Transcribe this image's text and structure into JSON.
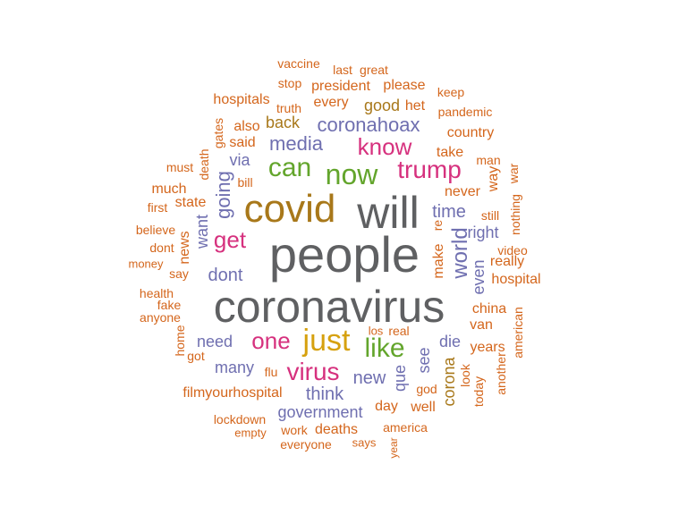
{
  "palette": {
    "gray": "#5f6062",
    "orange": "#d4661c",
    "olive": "#a8781a",
    "purple": "#6f6fb0",
    "pink": "#d6317e",
    "green": "#63a52c",
    "gold": "#d6a10f"
  },
  "words": [
    {
      "text": "people",
      "color": "gray"
    },
    {
      "text": "coronavirus",
      "color": "gray"
    },
    {
      "text": "will",
      "color": "gray"
    },
    {
      "text": "covid",
      "color": "olive"
    },
    {
      "text": "now",
      "color": "green"
    },
    {
      "text": "can",
      "color": "green"
    },
    {
      "text": "trump",
      "color": "pink"
    },
    {
      "text": "just",
      "color": "gold"
    },
    {
      "text": "like",
      "color": "green"
    },
    {
      "text": "one",
      "color": "pink"
    },
    {
      "text": "know",
      "color": "pink"
    },
    {
      "text": "virus",
      "color": "pink"
    },
    {
      "text": "get",
      "color": "pink"
    },
    {
      "text": "media",
      "color": "purple"
    },
    {
      "text": "coronahoax",
      "color": "purple"
    },
    {
      "text": "going",
      "color": "purple"
    },
    {
      "text": "time",
      "color": "purple"
    },
    {
      "text": "world",
      "color": "purple"
    },
    {
      "text": "dont",
      "color": "purple"
    },
    {
      "text": "new",
      "color": "purple"
    },
    {
      "text": "think",
      "color": "purple"
    },
    {
      "text": "need",
      "color": "purple"
    },
    {
      "text": "many",
      "color": "purple"
    },
    {
      "text": "government",
      "color": "purple"
    },
    {
      "text": "even",
      "color": "purple"
    },
    {
      "text": "see",
      "color": "purple"
    },
    {
      "text": "que",
      "color": "purple"
    },
    {
      "text": "die",
      "color": "purple"
    },
    {
      "text": "right",
      "color": "purple"
    },
    {
      "text": "want",
      "color": "purple"
    },
    {
      "text": "via",
      "color": "purple"
    },
    {
      "text": "good",
      "color": "olive"
    },
    {
      "text": "back",
      "color": "olive"
    },
    {
      "text": "corona",
      "color": "olive"
    },
    {
      "text": "president",
      "color": "orange"
    },
    {
      "text": "vaccine",
      "color": "orange"
    },
    {
      "text": "last",
      "color": "orange"
    },
    {
      "text": "great",
      "color": "orange"
    },
    {
      "text": "stop",
      "color": "orange"
    },
    {
      "text": "please",
      "color": "orange"
    },
    {
      "text": "keep",
      "color": "orange"
    },
    {
      "text": "hospitals",
      "color": "orange"
    },
    {
      "text": "truth",
      "color": "orange"
    },
    {
      "text": "every",
      "color": "orange"
    },
    {
      "text": "het",
      "color": "orange"
    },
    {
      "text": "pandemic",
      "color": "orange"
    },
    {
      "text": "also",
      "color": "orange"
    },
    {
      "text": "gates",
      "color": "orange"
    },
    {
      "text": "country",
      "color": "orange"
    },
    {
      "text": "said",
      "color": "orange"
    },
    {
      "text": "take",
      "color": "orange"
    },
    {
      "text": "must",
      "color": "orange"
    },
    {
      "text": "death",
      "color": "orange"
    },
    {
      "text": "bill",
      "color": "orange"
    },
    {
      "text": "man",
      "color": "orange"
    },
    {
      "text": "war",
      "color": "orange"
    },
    {
      "text": "way",
      "color": "orange"
    },
    {
      "text": "much",
      "color": "orange"
    },
    {
      "text": "never",
      "color": "orange"
    },
    {
      "text": "first",
      "color": "orange"
    },
    {
      "text": "state",
      "color": "orange"
    },
    {
      "text": "still",
      "color": "orange"
    },
    {
      "text": "nothing",
      "color": "orange"
    },
    {
      "text": "believe",
      "color": "orange"
    },
    {
      "text": "re",
      "color": "orange"
    },
    {
      "text": "dont",
      "color": "orange"
    },
    {
      "text": "news",
      "color": "orange"
    },
    {
      "text": "make",
      "color": "orange"
    },
    {
      "text": "video",
      "color": "orange"
    },
    {
      "text": "money",
      "color": "orange"
    },
    {
      "text": "say",
      "color": "orange"
    },
    {
      "text": "really",
      "color": "orange"
    },
    {
      "text": "hospital",
      "color": "orange"
    },
    {
      "text": "health",
      "color": "orange"
    },
    {
      "text": "fake",
      "color": "orange"
    },
    {
      "text": "china",
      "color": "orange"
    },
    {
      "text": "anyone",
      "color": "orange"
    },
    {
      "text": "van",
      "color": "orange"
    },
    {
      "text": "american",
      "color": "orange"
    },
    {
      "text": "los",
      "color": "orange"
    },
    {
      "text": "real",
      "color": "orange"
    },
    {
      "text": "home",
      "color": "orange"
    },
    {
      "text": "got",
      "color": "orange"
    },
    {
      "text": "years",
      "color": "orange"
    },
    {
      "text": "flu",
      "color": "orange"
    },
    {
      "text": "look",
      "color": "orange"
    },
    {
      "text": "another",
      "color": "orange"
    },
    {
      "text": "filmyourhospital",
      "color": "orange"
    },
    {
      "text": "god",
      "color": "orange"
    },
    {
      "text": "today",
      "color": "orange"
    },
    {
      "text": "day",
      "color": "orange"
    },
    {
      "text": "well",
      "color": "orange"
    },
    {
      "text": "lockdown",
      "color": "orange"
    },
    {
      "text": "america",
      "color": "orange"
    },
    {
      "text": "empty",
      "color": "orange"
    },
    {
      "text": "work",
      "color": "orange"
    },
    {
      "text": "deaths",
      "color": "orange"
    },
    {
      "text": "says",
      "color": "orange"
    },
    {
      "text": "everyone",
      "color": "orange"
    },
    {
      "text": "year",
      "color": "orange"
    }
  ]
}
